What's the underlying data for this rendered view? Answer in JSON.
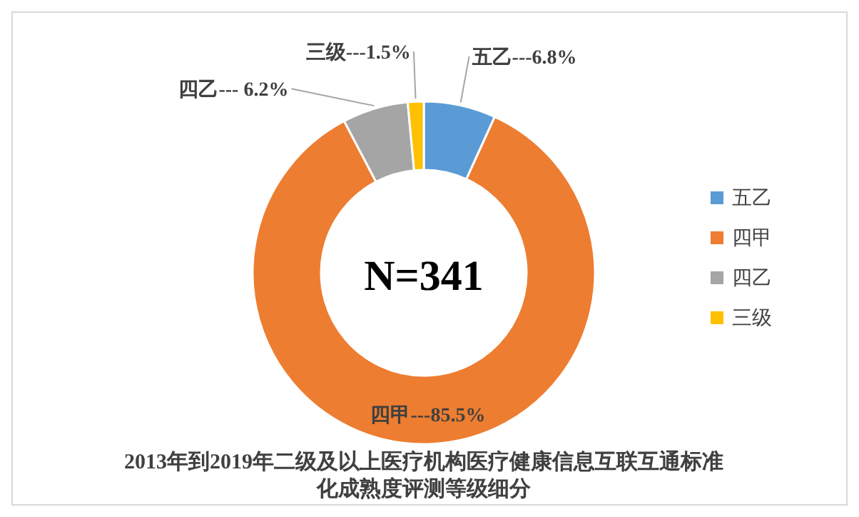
{
  "chart_data": {
    "type": "donut",
    "title": "2013年到2019年二级及以上医疗机构医疗健康信息互联互通标准化成熟度评测等级细分",
    "categories": [
      "五乙",
      "四甲",
      "四乙",
      "三级"
    ],
    "values": [
      6.8,
      85.5,
      6.2,
      1.5
    ],
    "colors": [
      "#5b9bd5",
      "#ed7d31",
      "#a5a5a5",
      "#ffc000"
    ],
    "value_labels": [
      "6.8%",
      "85.5%",
      "6.2%",
      "1.5%"
    ],
    "annotations": [
      "N=341",
      {
        "text": "---",
        "x": "五乙"
      },
      {
        "text": "---",
        "x": "四甲"
      },
      {
        "text": "--- ",
        "x": "四乙"
      },
      {
        "text": "---",
        "x": "三级"
      }
    ],
    "legend": "right"
  }
}
